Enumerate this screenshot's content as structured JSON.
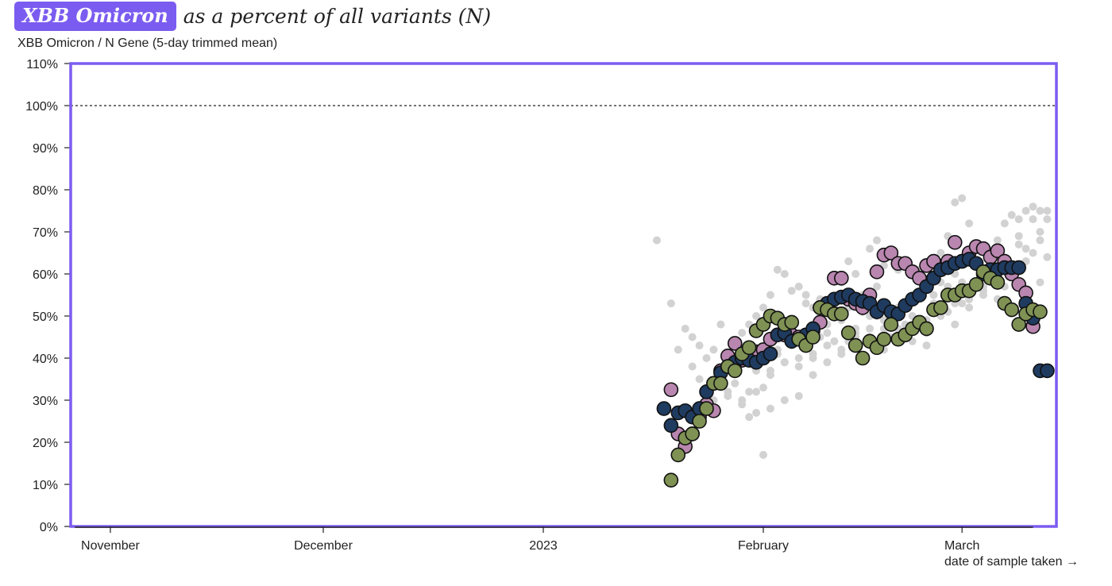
{
  "header": {
    "badge": "XBB Omicron",
    "title_rest": "as a percent of all variants (N)"
  },
  "subtitle": "XBB Omicron / N Gene (5-day trimmed mean)",
  "colors": {
    "frame": "#7b5cf0",
    "scatter": "#d2d2d2",
    "series_pink": "#b986b0",
    "series_navy": "#1f3b60",
    "series_green": "#7f9254",
    "reference_line": "#222222"
  },
  "chart_data": {
    "type": "scatter",
    "title": "XBB Omicron as a percent of all variants (N)",
    "ylabel": "XBB Omicron / N Gene (5-day trimmed mean)",
    "xlabel": "date of sample taken →",
    "ylim": [
      0,
      110
    ],
    "xlim_days": [
      -66,
      69
    ],
    "x_day_zero": "2023-01-01",
    "yticks": [
      {
        "v": 0,
        "label": "0%"
      },
      {
        "v": 10,
        "label": "10%"
      },
      {
        "v": 20,
        "label": "20%"
      },
      {
        "v": 30,
        "label": "30%"
      },
      {
        "v": 40,
        "label": "40%"
      },
      {
        "v": 50,
        "label": "50%"
      },
      {
        "v": 60,
        "label": "60%"
      },
      {
        "v": 70,
        "label": "70%"
      },
      {
        "v": 80,
        "label": "80%"
      },
      {
        "v": 90,
        "label": "90%"
      },
      {
        "v": 100,
        "label": "100%"
      },
      {
        "v": 110,
        "label": "110%"
      }
    ],
    "xticks": [
      {
        "day": -61,
        "label": "November"
      },
      {
        "day": -31,
        "label": "December"
      },
      {
        "day": 0,
        "label": "2023"
      },
      {
        "day": 31,
        "label": "February"
      },
      {
        "day": 59,
        "label": "March"
      }
    ],
    "reference_line": {
      "y": 100,
      "style": "dotted"
    },
    "series": [
      {
        "name": "pink",
        "color": "#b986b0",
        "x": [
          18,
          19,
          20,
          21,
          22,
          23,
          24,
          25,
          26,
          27,
          28,
          30,
          31,
          32,
          34,
          35,
          36,
          38,
          39,
          40,
          41,
          42,
          43,
          44,
          45,
          46,
          47,
          48,
          49,
          50,
          51,
          52,
          53,
          54,
          55,
          56,
          57,
          58,
          59,
          60,
          61,
          62,
          63,
          64,
          65,
          66,
          67,
          68,
          69
        ],
        "y": [
          32.5,
          22,
          19,
          22,
          26,
          29,
          27.5,
          37,
          40.5,
          43.5,
          39.5,
          41.5,
          42,
          44.5,
          45.5,
          45.5,
          45,
          46.5,
          48.5,
          52,
          59,
          59,
          54,
          53,
          52,
          55,
          60.5,
          64.5,
          65,
          62.5,
          62.5,
          60.5,
          59,
          62,
          63,
          61,
          63,
          67.5,
          63,
          65,
          66.5,
          66,
          64,
          65.5,
          63,
          60,
          57.5,
          55.5,
          47.5
        ]
      },
      {
        "name": "navy",
        "color": "#1f3b60",
        "x": [
          17,
          18,
          19,
          20,
          21,
          22,
          23,
          24,
          25,
          26,
          27,
          28,
          29,
          30,
          31,
          32,
          33,
          34,
          35,
          36,
          37,
          38,
          39,
          40,
          41,
          42,
          43,
          44,
          45,
          46,
          47,
          48,
          49,
          50,
          51,
          52,
          53,
          54,
          55,
          56,
          57,
          58,
          59,
          60,
          61,
          62,
          63,
          64,
          65,
          66,
          67,
          68,
          69,
          70,
          71
        ],
        "y": [
          28,
          24,
          27,
          27.5,
          26,
          28,
          32,
          34,
          36.5,
          38,
          39,
          40,
          39.5,
          39,
          40,
          41,
          45.5,
          46,
          44,
          44.5,
          45.5,
          47,
          52,
          53,
          54,
          54.5,
          55,
          54,
          53.5,
          53,
          51,
          52.5,
          51,
          50.5,
          52.5,
          54,
          55,
          57,
          59,
          61,
          61.5,
          62.5,
          63,
          63.5,
          62.5,
          60,
          61,
          61,
          61.5,
          61.5,
          61.5,
          53,
          49.5,
          37,
          37
        ]
      },
      {
        "name": "green",
        "color": "#7f9254",
        "x": [
          18,
          19,
          20,
          21,
          22,
          23,
          24,
          25,
          26,
          27,
          28,
          29,
          30,
          31,
          32,
          33,
          34,
          35,
          36,
          37,
          38,
          39,
          40,
          41,
          42,
          43,
          44,
          45,
          46,
          47,
          48,
          49,
          50,
          51,
          52,
          53,
          54,
          55,
          56,
          57,
          58,
          59,
          60,
          61,
          62,
          63,
          64,
          65,
          66,
          67,
          68,
          69,
          70
        ],
        "y": [
          11,
          17,
          21,
          22,
          25,
          28,
          34,
          34,
          38,
          37,
          41,
          42.5,
          46.5,
          48,
          50,
          49.5,
          48,
          48.5,
          44.5,
          43,
          45,
          52,
          51.5,
          50.5,
          50.5,
          46,
          43,
          40,
          44,
          42.5,
          44.5,
          48,
          44.5,
          45.5,
          47,
          48.5,
          47,
          51.5,
          52,
          55,
          55,
          56,
          56,
          57.5,
          60.5,
          59,
          58,
          53,
          51.5,
          48,
          50.5,
          51.5,
          51
        ]
      }
    ],
    "background_points": {
      "color": "#d2d2d2",
      "x": [
        16,
        18,
        18,
        19,
        20,
        20,
        21,
        21,
        22,
        22,
        23,
        23,
        24,
        24,
        25,
        25,
        26,
        26,
        27,
        27,
        28,
        28,
        29,
        29,
        30,
        30,
        31,
        31,
        32,
        32,
        33,
        33,
        34,
        34,
        35,
        35,
        36,
        36,
        37,
        37,
        38,
        38,
        39,
        39,
        40,
        40,
        41,
        41,
        42,
        42,
        43,
        43,
        44,
        44,
        45,
        45,
        46,
        46,
        47,
        47,
        48,
        48,
        49,
        49,
        50,
        50,
        51,
        51,
        52,
        52,
        53,
        53,
        54,
        54,
        55,
        55,
        56,
        56,
        57,
        57,
        58,
        58,
        59,
        59,
        60,
        60,
        61,
        61,
        62,
        62,
        63,
        63,
        64,
        64,
        65,
        65,
        66,
        66,
        67,
        67,
        68,
        68,
        69,
        69,
        70,
        70,
        71,
        71,
        30,
        32,
        34,
        36,
        38,
        40,
        42,
        44,
        46,
        48,
        50,
        52,
        54,
        56,
        58,
        60,
        62,
        64,
        66,
        68,
        70,
        26,
        28,
        30,
        32,
        34,
        36,
        38,
        40,
        42,
        44,
        46,
        48,
        50,
        52,
        54,
        56,
        58,
        60,
        62,
        64,
        66,
        68,
        70,
        29,
        31,
        33,
        35,
        37,
        39,
        41,
        43,
        45,
        47,
        49,
        51,
        53,
        55,
        57,
        59,
        61,
        63,
        65,
        67,
        69,
        71
      ],
      "y": [
        68,
        53,
        25,
        42,
        47,
        20,
        45,
        38,
        43,
        35,
        40,
        33,
        42,
        30,
        48,
        37,
        41,
        31,
        44,
        34,
        46,
        30,
        48,
        32,
        50,
        27,
        52,
        33,
        55,
        36,
        61,
        41,
        60,
        39,
        56,
        43,
        57,
        40,
        55,
        44,
        52,
        41,
        50,
        45,
        48,
        46,
        53,
        44,
        58,
        49,
        63,
        52,
        60,
        47,
        55,
        51,
        66,
        50,
        68,
        57,
        62,
        47,
        64,
        45,
        61,
        52,
        63,
        46,
        60,
        50,
        61,
        55,
        62,
        49,
        60,
        53,
        65,
        58,
        69,
        57,
        77,
        60,
        78,
        58,
        72,
        54,
        66,
        62,
        58,
        55,
        65,
        61,
        68,
        58,
        72,
        62,
        74,
        62,
        73,
        67,
        75,
        63,
        76,
        65,
        75,
        70,
        73,
        64,
        37,
        37,
        39,
        38,
        40,
        43,
        41,
        45,
        47,
        49,
        45,
        44,
        46,
        50,
        53,
        52,
        56,
        54,
        62,
        66,
        58,
        32,
        29,
        32,
        28,
        30,
        31,
        36,
        39,
        42,
        46,
        45,
        42,
        47,
        50,
        43,
        51,
        48,
        54,
        57,
        59,
        60,
        63,
        68,
        26,
        17,
        42,
        48,
        53,
        54,
        52,
        44,
        55,
        50,
        48,
        48,
        54,
        55,
        51,
        53,
        57,
        62,
        57,
        69,
        73,
        75
      ]
    }
  }
}
